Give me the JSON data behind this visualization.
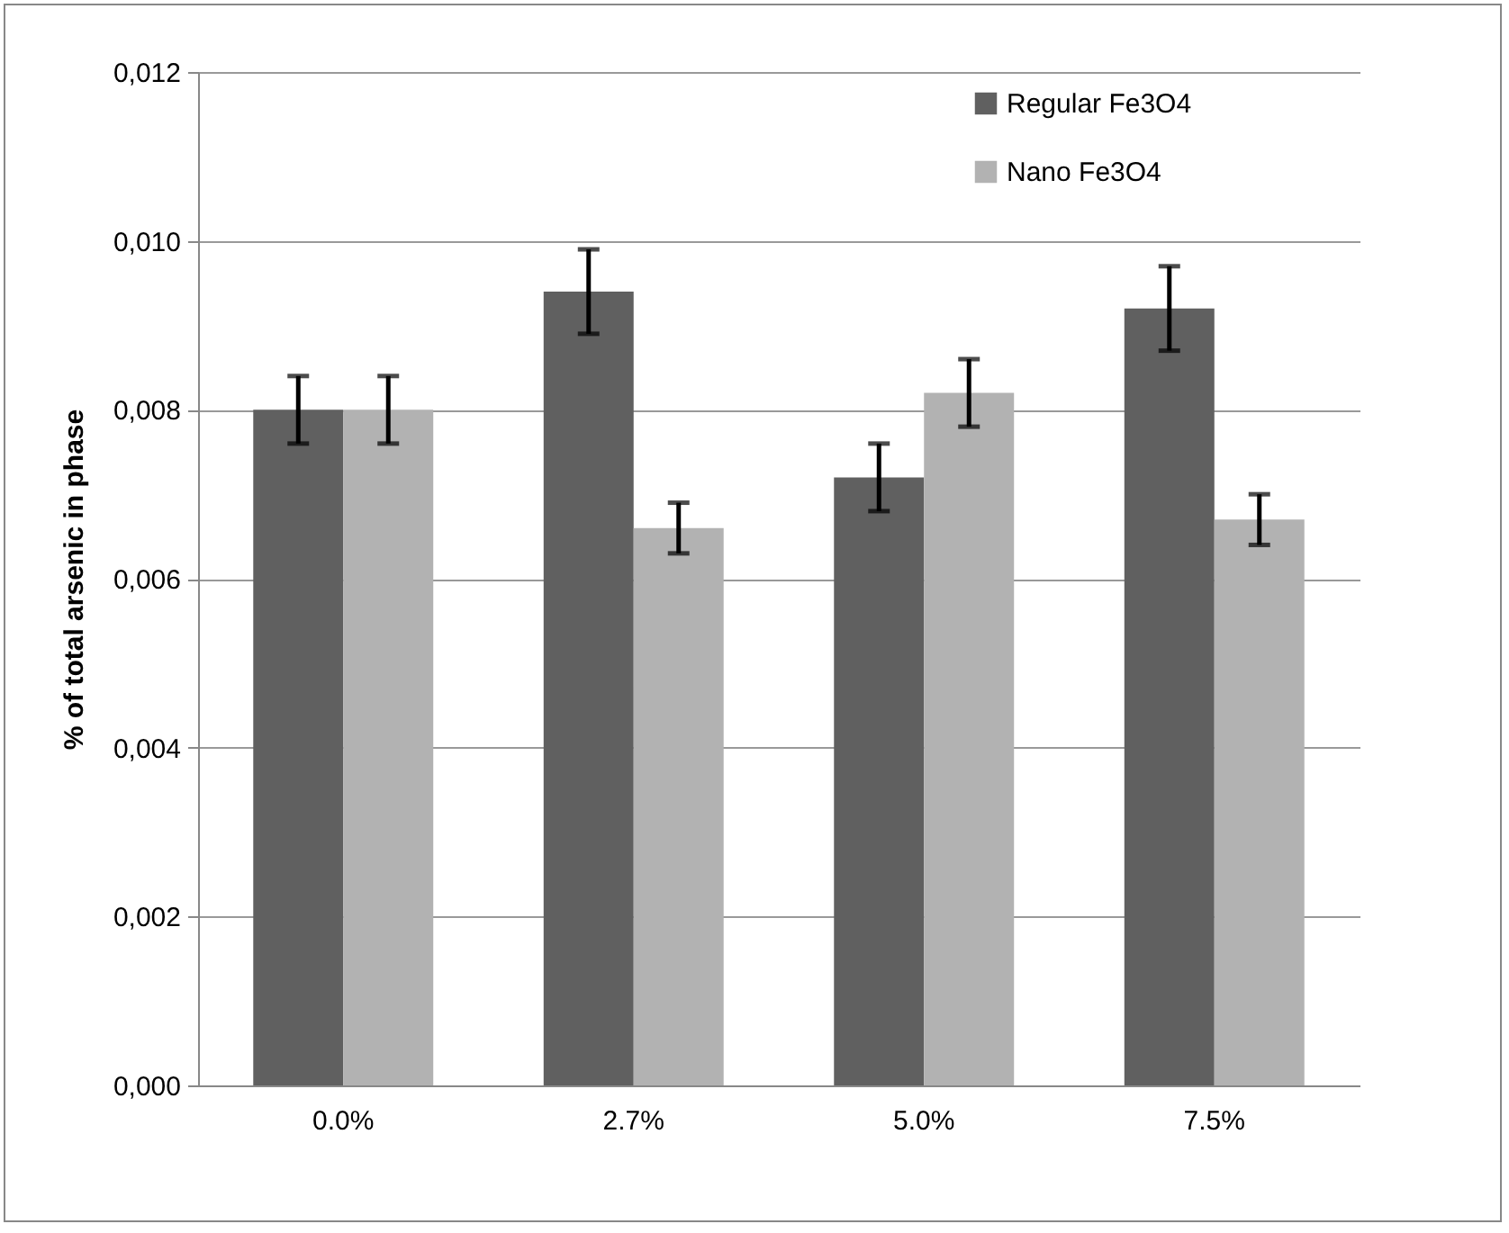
{
  "chart_data": {
    "type": "bar",
    "ylabel": "% of total arsenic in phase",
    "categories": [
      "0.0%",
      "2.7%",
      "5.0%",
      "7.5%"
    ],
    "series": [
      {
        "name": "Regular Fe3O4",
        "color": "#606060",
        "values": [
          0.008,
          0.0094,
          0.0072,
          0.0092
        ],
        "errors": [
          0.0004,
          0.0005,
          0.0004,
          0.0005
        ]
      },
      {
        "name": "Nano Fe3O4",
        "color": "#b2b2b2",
        "values": [
          0.008,
          0.0066,
          0.0082,
          0.0067
        ],
        "errors": [
          0.0004,
          0.0003,
          0.0004,
          0.0003
        ]
      }
    ],
    "ylim": [
      0,
      0.012
    ],
    "yticks": [
      {
        "value": 0,
        "label": "0,000"
      },
      {
        "value": 0.002,
        "label": "0,002"
      },
      {
        "value": 0.004,
        "label": "0,004"
      },
      {
        "value": 0.006,
        "label": "0,006"
      },
      {
        "value": 0.008,
        "label": "0,008"
      },
      {
        "value": 0.01,
        "label": "0,010"
      },
      {
        "value": 0.012,
        "label": "0,012"
      }
    ],
    "grid": "y",
    "legend": "top right"
  }
}
